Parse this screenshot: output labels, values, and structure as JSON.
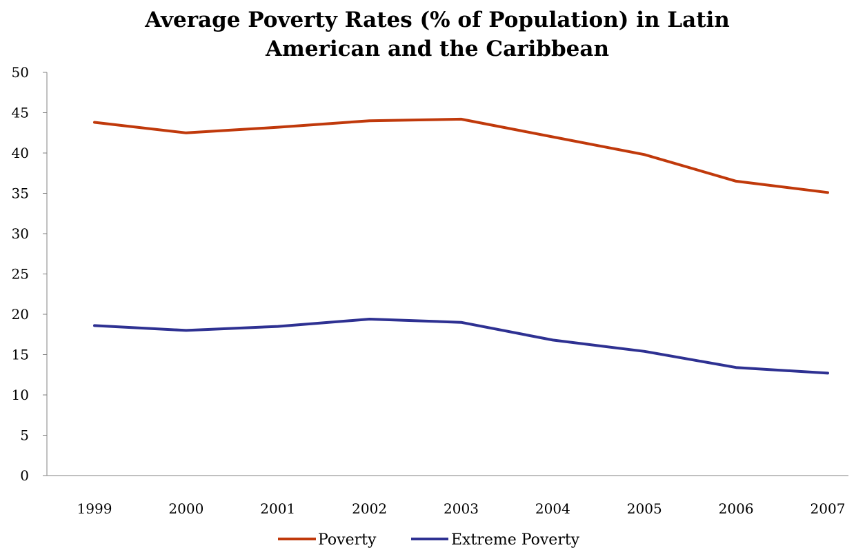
{
  "chart_data": {
    "type": "line",
    "title_line1": "Average Poverty Rates (% of Population) in Latin",
    "title_line2": "American and the Caribbean",
    "xlabel": "",
    "ylabel": "",
    "ylim": [
      0,
      50
    ],
    "y_ticks": [
      "0",
      "5",
      "10",
      "15",
      "20",
      "25",
      "30",
      "35",
      "40",
      "45",
      "50"
    ],
    "categories": [
      "1999",
      "2000",
      "2001",
      "2002",
      "2003",
      "2004",
      "2005",
      "2006",
      "2007"
    ],
    "grid": false,
    "legend_position": "bottom",
    "series": [
      {
        "name": "Poverty",
        "color": "#C0390B",
        "values": [
          43.8,
          42.5,
          43.2,
          44.0,
          44.2,
          42.0,
          39.8,
          36.5,
          35.1
        ]
      },
      {
        "name": "Extreme Poverty",
        "color": "#2E3192",
        "values": [
          18.6,
          18.0,
          18.5,
          19.4,
          19.0,
          16.8,
          15.4,
          13.4,
          12.7
        ]
      }
    ]
  }
}
